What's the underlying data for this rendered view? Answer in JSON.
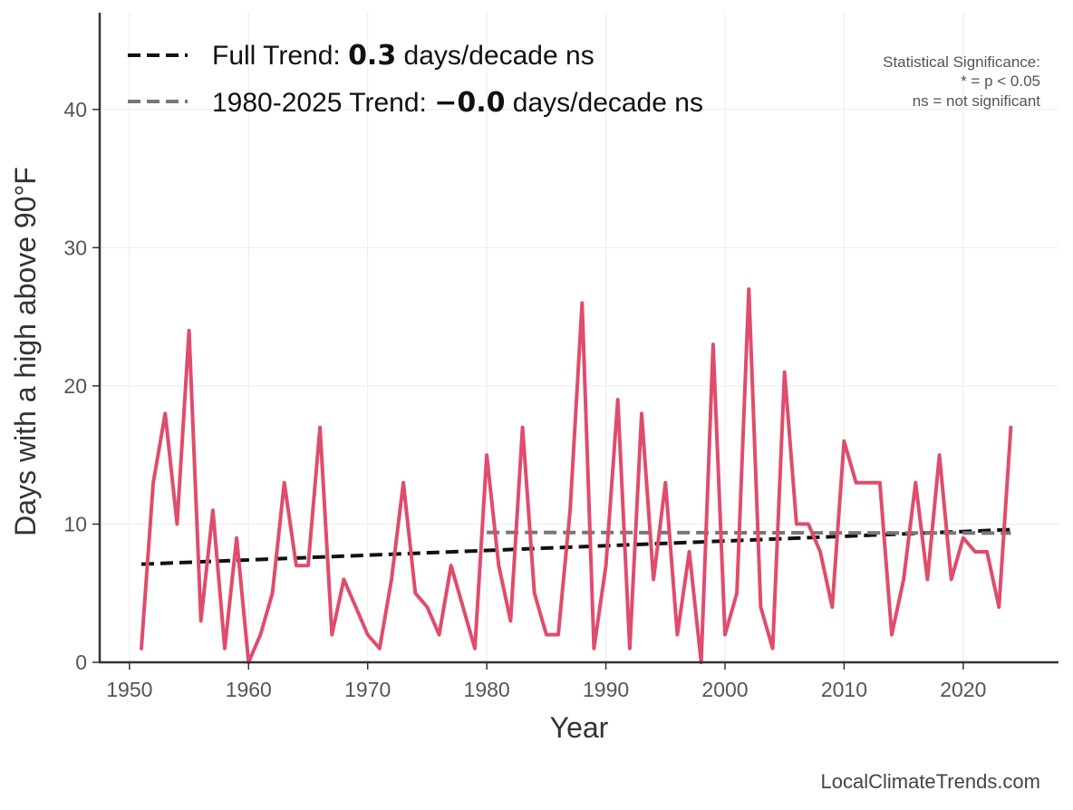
{
  "chart_data": {
    "type": "line",
    "title": "",
    "xlabel": "Year",
    "ylabel": "Days with a high above 90°F",
    "xlim": [
      1947.5,
      2028
    ],
    "ylim": [
      0,
      47
    ],
    "x_ticks": [
      1950,
      1960,
      1970,
      1980,
      1990,
      2000,
      2010,
      2020
    ],
    "y_ticks": [
      0,
      10,
      20,
      30,
      40
    ],
    "grid": true,
    "legend_position": "top-left",
    "series": [
      {
        "kind": "data",
        "color": "#e04c6c",
        "x": [
          1951,
          1952,
          1953,
          1954,
          1955,
          1956,
          1957,
          1958,
          1959,
          1960,
          1961,
          1962,
          1963,
          1964,
          1965,
          1966,
          1967,
          1968,
          1969,
          1970,
          1971,
          1972,
          1973,
          1974,
          1975,
          1976,
          1977,
          1978,
          1979,
          1980,
          1981,
          1982,
          1983,
          1984,
          1985,
          1986,
          1987,
          1988,
          1989,
          1990,
          1991,
          1992,
          1993,
          1994,
          1995,
          1996,
          1997,
          1998,
          1999,
          2000,
          2001,
          2002,
          2003,
          2004,
          2005,
          2006,
          2007,
          2008,
          2009,
          2010,
          2011,
          2012,
          2013,
          2014,
          2015,
          2016,
          2017,
          2018,
          2019,
          2020,
          2021,
          2022,
          2023,
          2024
        ],
        "values": [
          1,
          13,
          18,
          10,
          24,
          3,
          11,
          1,
          9,
          0,
          2,
          5,
          13,
          7,
          7,
          17,
          2,
          6,
          4,
          2,
          1,
          6,
          13,
          5,
          4,
          2,
          7,
          4,
          1,
          15,
          7,
          3,
          17,
          5,
          2,
          2,
          11,
          26,
          1,
          7,
          19,
          1,
          18,
          6,
          13,
          2,
          8,
          0,
          23,
          2,
          5,
          27,
          4,
          1,
          21,
          10,
          10,
          8,
          4,
          16,
          13,
          13,
          13,
          2,
          6,
          13,
          6,
          15,
          6,
          9,
          8,
          8,
          4,
          17
        ]
      },
      {
        "kind": "trend",
        "name_prefix": "Full Trend: ",
        "name_value": "0.3",
        "name_suffix": " days/decade ns",
        "color": "#111111",
        "x": [
          1951,
          2024
        ],
        "values": [
          7.1,
          9.6
        ]
      },
      {
        "kind": "trend",
        "name_prefix": "1980-2025 Trend: ",
        "name_value": "−0.0",
        "name_suffix": " days/decade ns",
        "color": "#777777",
        "x": [
          1980,
          2024
        ],
        "values": [
          9.4,
          9.35
        ]
      }
    ],
    "significance_note": [
      "Statistical Significance:",
      "* = p < 0.05",
      "ns = not significant"
    ],
    "footer": "LocalClimateTrends.com"
  }
}
